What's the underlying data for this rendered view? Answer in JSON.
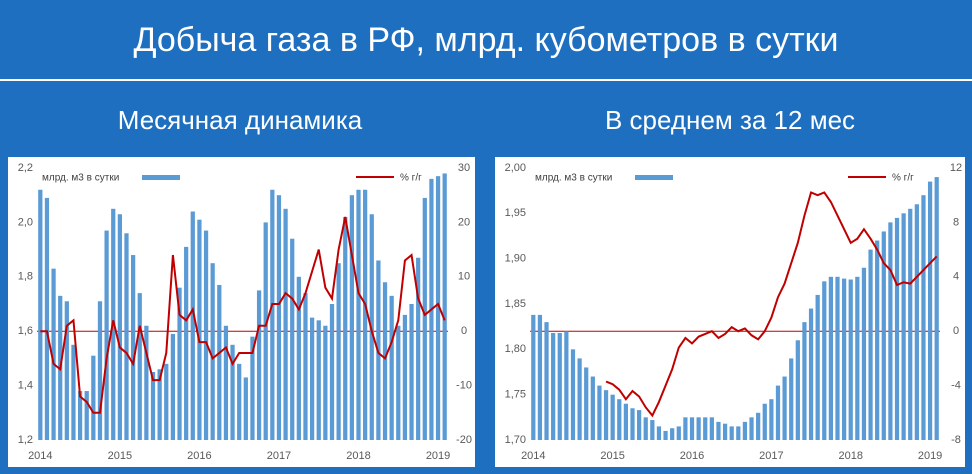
{
  "header": {
    "title": "Добыча газа в РФ, млрд. кубометров в сутки"
  },
  "chart_data": [
    {
      "type": "bar_line",
      "title": "Месячная динамика",
      "categories": [
        "2014",
        null,
        null,
        null,
        null,
        null,
        null,
        null,
        null,
        null,
        null,
        null,
        "2015",
        null,
        null,
        null,
        null,
        null,
        null,
        null,
        null,
        null,
        null,
        null,
        "2016",
        null,
        null,
        null,
        null,
        null,
        null,
        null,
        null,
        null,
        null,
        null,
        "2017",
        null,
        null,
        null,
        null,
        null,
        null,
        null,
        null,
        null,
        null,
        null,
        "2018",
        null,
        null,
        null,
        null,
        null,
        null,
        null,
        null,
        null,
        null,
        null,
        "2019",
        null
      ],
      "series": [
        {
          "name": "млрд. м3 в сутки",
          "color": "#5b9bd5",
          "kind": "bar",
          "values": [
            2.12,
            2.09,
            1.83,
            1.73,
            1.71,
            1.55,
            1.38,
            1.38,
            1.51,
            1.71,
            1.97,
            2.05,
            2.03,
            1.96,
            1.88,
            1.74,
            1.62,
            1.45,
            1.46,
            1.48,
            1.59,
            1.76,
            1.91,
            2.04,
            2.01,
            1.97,
            1.85,
            1.77,
            1.62,
            1.55,
            1.48,
            1.43,
            1.58,
            1.75,
            2.0,
            2.12,
            2.1,
            2.05,
            1.94,
            1.8,
            1.74,
            1.65,
            1.64,
            1.62,
            1.7,
            1.85,
            2.02,
            2.1,
            2.12,
            2.12,
            2.03,
            1.86,
            1.78,
            1.73,
            1.62,
            1.66,
            1.7,
            1.87,
            2.09,
            2.16,
            2.17,
            2.18
          ]
        },
        {
          "name": "% г/г",
          "color": "#c00000",
          "kind": "line",
          "axis": "y2",
          "values": [
            0,
            0,
            -6,
            -7,
            1,
            2,
            -12,
            -13,
            -15,
            -15,
            -5,
            2,
            -3,
            -4,
            -6,
            1,
            -4,
            -9,
            -9,
            -4,
            14,
            3,
            2,
            4,
            -2,
            -2,
            -5,
            -4,
            -3,
            -6,
            -4,
            -4,
            -4,
            1,
            1,
            5,
            5,
            7,
            6,
            4,
            7,
            11,
            15,
            8,
            6,
            15,
            21,
            14,
            7,
            5,
            0,
            -4,
            -5,
            -2,
            2,
            13,
            14,
            6,
            3,
            4,
            5,
            2
          ]
        }
      ],
      "ylim": [
        1.2,
        2.2
      ],
      "yticks": [
        {
          "value": 1.2,
          "label": "1,2"
        },
        {
          "value": 1.4,
          "label": "1,4"
        },
        {
          "value": 1.6,
          "label": "1,6"
        },
        {
          "value": 1.8,
          "label": "1,8"
        },
        {
          "value": 2.0,
          "label": "2,0"
        },
        {
          "value": 2.2,
          "label": "2,2"
        }
      ],
      "y2lim": [
        -20,
        30
      ],
      "y2ticks": [
        -20,
        -10,
        0,
        10,
        20,
        30
      ],
      "zero_line": true
    },
    {
      "type": "bar_line",
      "title": "В среднем за 12 мес",
      "categories": [
        "2014",
        null,
        null,
        null,
        null,
        null,
        null,
        null,
        null,
        null,
        null,
        null,
        "2015",
        null,
        null,
        null,
        null,
        null,
        null,
        null,
        null,
        null,
        null,
        null,
        "2016",
        null,
        null,
        null,
        null,
        null,
        null,
        null,
        null,
        null,
        null,
        null,
        "2017",
        null,
        null,
        null,
        null,
        null,
        null,
        null,
        null,
        null,
        null,
        null,
        "2018",
        null,
        null,
        null,
        null,
        null,
        null,
        null,
        null,
        null,
        null,
        null,
        "2019",
        null
      ],
      "series": [
        {
          "name": "млрд. м3 в сутки",
          "color": "#5b9bd5",
          "kind": "bar",
          "values": [
            1.838,
            1.838,
            1.83,
            1.818,
            1.818,
            1.82,
            1.8,
            1.79,
            1.78,
            1.77,
            1.76,
            1.755,
            1.75,
            1.745,
            1.74,
            1.735,
            1.733,
            1.725,
            1.722,
            1.715,
            1.71,
            1.713,
            1.715,
            1.725,
            1.725,
            1.725,
            1.725,
            1.725,
            1.72,
            1.718,
            1.715,
            1.715,
            1.72,
            1.725,
            1.73,
            1.74,
            1.745,
            1.76,
            1.77,
            1.79,
            1.81,
            1.83,
            1.845,
            1.86,
            1.875,
            1.88,
            1.88,
            1.878,
            1.877,
            1.88,
            1.89,
            1.91,
            1.92,
            1.93,
            1.94,
            1.945,
            1.95,
            1.955,
            1.96,
            1.97,
            1.985,
            1.99
          ]
        },
        {
          "name": "% г/г",
          "color": "#c00000",
          "kind": "line",
          "axis": "y2",
          "values": [
            null,
            null,
            null,
            null,
            null,
            null,
            null,
            null,
            null,
            null,
            null,
            -3.7,
            -3.9,
            -4.3,
            -5.0,
            -4.4,
            -4.8,
            -5.6,
            -6.2,
            -5.2,
            -4.0,
            -2.8,
            -1.2,
            -0.5,
            -0.9,
            -0.4,
            -0.2,
            0,
            -0.5,
            -0.2,
            0.3,
            0,
            0.2,
            -0.3,
            -0.6,
            0,
            1,
            2.5,
            3.5,
            5,
            6.5,
            8.5,
            10.2,
            10,
            10.2,
            9.5,
            8.5,
            7.5,
            6.5,
            6.8,
            7.5,
            6.8,
            6,
            5,
            4.5,
            3.4,
            3.6,
            3.5,
            4,
            4.5,
            5,
            5.5
          ]
        }
      ],
      "ylim": [
        1.7,
        2.0
      ],
      "yticks": [
        {
          "value": 1.7,
          "label": "1,70"
        },
        {
          "value": 1.75,
          "label": "1,75"
        },
        {
          "value": 1.8,
          "label": "1,80"
        },
        {
          "value": 1.85,
          "label": "1,85"
        },
        {
          "value": 1.9,
          "label": "1,90"
        },
        {
          "value": 1.95,
          "label": "1,95"
        },
        {
          "value": 2.0,
          "label": "2,00"
        }
      ],
      "y2lim": [
        -8,
        12
      ],
      "y2ticks": [
        -8,
        -4,
        0,
        4,
        8,
        12
      ],
      "zero_line": true
    }
  ]
}
